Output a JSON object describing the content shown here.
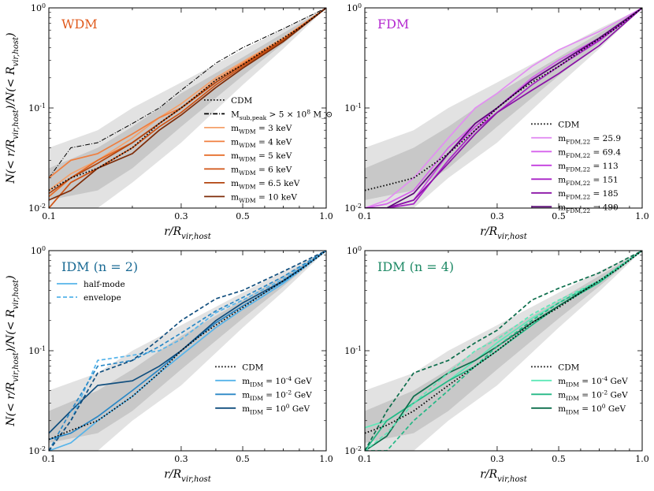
{
  "figure": {
    "xlabel": "r/R_vir,host",
    "ylabel": "N(< r/R_vir,host)/N(< R_vir,host)",
    "x_ticks": [
      "0.1",
      "0.3",
      "0.5",
      "1.0"
    ],
    "y_ticks": [
      "10^-2",
      "10^-1",
      "10^0"
    ]
  },
  "chart_data": [
    {
      "type": "line",
      "id": "wdm",
      "title": "WDM",
      "title_color": "#e05a1c",
      "xscale": "log",
      "yscale": "log",
      "xlim": [
        0.1,
        1.0
      ],
      "ylim": [
        0.01,
        1.0
      ],
      "legend_position": "center-right",
      "cdm_label": "CDM",
      "extra_label": "M_sub,peak > 5 × 10^8 M_⊙",
      "extra": {
        "x": [
          0.1,
          0.12,
          0.15,
          0.2,
          0.25,
          0.3,
          0.4,
          0.5,
          0.7,
          1.0
        ],
        "y": [
          0.02,
          0.04,
          0.045,
          0.07,
          0.1,
          0.15,
          0.28,
          0.4,
          0.62,
          1.0
        ]
      },
      "cdm": {
        "x": [
          0.1,
          0.12,
          0.15,
          0.2,
          0.25,
          0.3,
          0.35,
          0.4,
          0.5,
          0.6,
          0.7,
          0.8,
          1.0
        ],
        "y": [
          0.015,
          0.02,
          0.025,
          0.04,
          0.07,
          0.1,
          0.14,
          0.19,
          0.27,
          0.38,
          0.5,
          0.63,
          1.0
        ]
      },
      "bands": {
        "x": [
          0.1,
          0.15,
          0.2,
          0.3,
          0.5,
          0.7,
          1.0
        ],
        "outer_lo": [
          0.01,
          0.01,
          0.018,
          0.045,
          0.17,
          0.39,
          1.0
        ],
        "outer_hi": [
          0.04,
          0.06,
          0.1,
          0.18,
          0.38,
          0.62,
          1.0
        ],
        "inner_lo": [
          0.012,
          0.015,
          0.025,
          0.065,
          0.21,
          0.44,
          1.0
        ],
        "inner_hi": [
          0.025,
          0.04,
          0.065,
          0.14,
          0.32,
          0.56,
          1.0
        ]
      },
      "series": [
        {
          "name": "m_WDM = 3 keV",
          "color": "#f5a06a",
          "x": [
            0.1,
            0.12,
            0.15,
            0.2,
            0.25,
            0.3,
            0.4,
            0.5,
            0.7,
            1.0
          ],
          "y": [
            0.015,
            0.022,
            0.03,
            0.05,
            0.08,
            0.11,
            0.2,
            0.29,
            0.5,
            1.0
          ]
        },
        {
          "name": "m_WDM = 4 keV",
          "color": "#f07f3f",
          "x": [
            0.1,
            0.12,
            0.15,
            0.2,
            0.25,
            0.3,
            0.4,
            0.5,
            0.7,
            1.0
          ],
          "y": [
            0.02,
            0.03,
            0.035,
            0.055,
            0.08,
            0.1,
            0.19,
            0.28,
            0.49,
            1.0
          ]
        },
        {
          "name": "m_WDM = 5 keV",
          "color": "#e66a24",
          "x": [
            0.1,
            0.12,
            0.15,
            0.2,
            0.25,
            0.3,
            0.4,
            0.5,
            0.7,
            1.0
          ],
          "y": [
            0.013,
            0.02,
            0.03,
            0.045,
            0.07,
            0.1,
            0.18,
            0.27,
            0.48,
            1.0
          ]
        },
        {
          "name": "m_WDM = 6 keV",
          "color": "#d05314",
          "x": [
            0.1,
            0.12,
            0.15,
            0.2,
            0.25,
            0.3,
            0.4,
            0.5,
            0.7,
            1.0
          ],
          "y": [
            0.01,
            0.018,
            0.025,
            0.04,
            0.065,
            0.09,
            0.17,
            0.26,
            0.47,
            1.0
          ]
        },
        {
          "name": "m_WDM = 6.5 keV",
          "color": "#b2440e",
          "x": [
            0.1,
            0.12,
            0.15,
            0.2,
            0.25,
            0.3,
            0.4,
            0.5,
            0.7,
            1.0
          ],
          "y": [
            0.014,
            0.02,
            0.028,
            0.045,
            0.07,
            0.1,
            0.18,
            0.27,
            0.48,
            1.0
          ]
        },
        {
          "name": "m_WDM = 10 keV",
          "color": "#7e2c08",
          "x": [
            0.1,
            0.12,
            0.15,
            0.2,
            0.25,
            0.3,
            0.4,
            0.5,
            0.7,
            1.0
          ],
          "y": [
            0.012,
            0.015,
            0.025,
            0.035,
            0.06,
            0.085,
            0.16,
            0.25,
            0.46,
            1.0
          ]
        }
      ]
    },
    {
      "type": "line",
      "id": "fdm",
      "title": "FDM",
      "title_color": "#b52bd0",
      "xscale": "log",
      "yscale": "log",
      "xlim": [
        0.1,
        1.0
      ],
      "ylim": [
        0.01,
        1.0
      ],
      "legend_position": "lower-right",
      "cdm_label": "CDM",
      "cdm": {
        "x": [
          0.1,
          0.12,
          0.15,
          0.2,
          0.25,
          0.3,
          0.35,
          0.4,
          0.5,
          0.6,
          0.7,
          0.8,
          1.0
        ],
        "y": [
          0.015,
          0.017,
          0.02,
          0.035,
          0.06,
          0.1,
          0.14,
          0.18,
          0.26,
          0.37,
          0.49,
          0.62,
          1.0
        ]
      },
      "bands": {
        "x": [
          0.1,
          0.15,
          0.2,
          0.3,
          0.5,
          0.7,
          1.0
        ],
        "outer_lo": [
          0.01,
          0.01,
          0.02,
          0.045,
          0.17,
          0.39,
          1.0
        ],
        "outer_hi": [
          0.04,
          0.06,
          0.1,
          0.18,
          0.38,
          0.62,
          1.0
        ],
        "inner_lo": [
          0.012,
          0.015,
          0.025,
          0.065,
          0.21,
          0.44,
          1.0
        ],
        "inner_hi": [
          0.025,
          0.04,
          0.065,
          0.14,
          0.32,
          0.56,
          1.0
        ]
      },
      "series": [
        {
          "name": "m_FDM,22 = 25.9",
          "color": "#e28ef2",
          "x": [
            0.1,
            0.12,
            0.15,
            0.2,
            0.25,
            0.3,
            0.4,
            0.5,
            0.7,
            1.0
          ],
          "y": [
            0.01,
            0.012,
            0.02,
            0.05,
            0.1,
            0.14,
            0.26,
            0.38,
            0.58,
            1.0
          ]
        },
        {
          "name": "m_FDM,22 = 69.4",
          "color": "#d662ec",
          "x": [
            0.1,
            0.12,
            0.15,
            0.2,
            0.25,
            0.3,
            0.4,
            0.5,
            0.7,
            1.0
          ],
          "y": [
            0.01,
            0.011,
            0.015,
            0.04,
            0.07,
            0.1,
            0.2,
            0.3,
            0.5,
            1.0
          ]
        },
        {
          "name": "m_FDM,22 = 113",
          "color": "#c43fdf",
          "x": [
            0.1,
            0.12,
            0.15,
            0.2,
            0.25,
            0.3,
            0.4,
            0.5,
            0.7,
            1.0
          ],
          "y": [
            0.01,
            0.01,
            0.012,
            0.035,
            0.065,
            0.1,
            0.19,
            0.28,
            0.48,
            1.0
          ]
        },
        {
          "name": "m_FDM,22 = 151",
          "color": "#a822c6",
          "x": [
            0.1,
            0.12,
            0.15,
            0.2,
            0.25,
            0.3,
            0.4,
            0.5,
            0.7,
            1.0
          ],
          "y": [
            0.01,
            0.01,
            0.011,
            0.03,
            0.06,
            0.09,
            0.17,
            0.26,
            0.47,
            1.0
          ]
        },
        {
          "name": "m_FDM,22 = 185",
          "color": "#8a12a6",
          "x": [
            0.1,
            0.12,
            0.15,
            0.2,
            0.25,
            0.3,
            0.4,
            0.5,
            0.7,
            1.0
          ],
          "y": [
            0.01,
            0.01,
            0.012,
            0.028,
            0.055,
            0.09,
            0.15,
            0.22,
            0.42,
            1.0
          ]
        },
        {
          "name": "m_FDM,22 = 490",
          "color": "#5c0a78",
          "x": [
            0.1,
            0.12,
            0.15,
            0.2,
            0.25,
            0.3,
            0.4,
            0.5,
            0.7,
            1.0
          ],
          "y": [
            0.01,
            0.01,
            0.014,
            0.035,
            0.07,
            0.1,
            0.19,
            0.28,
            0.5,
            1.0
          ]
        }
      ]
    },
    {
      "type": "line",
      "id": "idm2",
      "title": "IDM (n = 2)",
      "title_color": "#1a6a94",
      "xscale": "log",
      "yscale": "log",
      "xlim": [
        0.1,
        1.0
      ],
      "ylim": [
        0.01,
        1.0
      ],
      "legend_position": "lower-right",
      "style_legend": [
        {
          "label": "half-mode",
          "dash": false
        },
        {
          "label": "envelope",
          "dash": true
        }
      ],
      "cdm_label": "CDM",
      "cdm": {
        "x": [
          0.1,
          0.12,
          0.15,
          0.2,
          0.25,
          0.3,
          0.35,
          0.4,
          0.5,
          0.6,
          0.7,
          0.8,
          1.0
        ],
        "y": [
          0.013,
          0.016,
          0.02,
          0.035,
          0.06,
          0.1,
          0.14,
          0.18,
          0.27,
          0.38,
          0.5,
          0.63,
          1.0
        ]
      },
      "bands": {
        "x": [
          0.1,
          0.15,
          0.2,
          0.3,
          0.5,
          0.7,
          1.0
        ],
        "outer_lo": [
          0.01,
          0.01,
          0.02,
          0.045,
          0.17,
          0.39,
          1.0
        ],
        "outer_hi": [
          0.04,
          0.06,
          0.1,
          0.18,
          0.38,
          0.62,
          1.0
        ],
        "inner_lo": [
          0.012,
          0.015,
          0.025,
          0.065,
          0.21,
          0.44,
          1.0
        ],
        "inner_hi": [
          0.025,
          0.04,
          0.065,
          0.14,
          0.32,
          0.56,
          1.0
        ]
      },
      "series": [
        {
          "name": "m_IDM = 10^-4 GeV",
          "color": "#56b4ea",
          "legend": true,
          "dash": false,
          "x": [
            0.1,
            0.12,
            0.15,
            0.2,
            0.25,
            0.3,
            0.4,
            0.5,
            0.7,
            1.0
          ],
          "y": [
            0.01,
            0.012,
            0.02,
            0.035,
            0.06,
            0.09,
            0.17,
            0.26,
            0.47,
            1.0
          ]
        },
        {
          "name": "m_IDM = 10^-2 GeV",
          "color": "#2a88c6",
          "legend": true,
          "dash": false,
          "x": [
            0.1,
            0.12,
            0.15,
            0.2,
            0.25,
            0.3,
            0.4,
            0.5,
            0.7,
            1.0
          ],
          "y": [
            0.013,
            0.015,
            0.022,
            0.04,
            0.065,
            0.1,
            0.19,
            0.28,
            0.49,
            1.0
          ]
        },
        {
          "name": "m_IDM = 10^0 GeV",
          "color": "#104e7e",
          "legend": true,
          "dash": false,
          "x": [
            0.1,
            0.12,
            0.15,
            0.2,
            0.25,
            0.3,
            0.4,
            0.5,
            0.7,
            1.0
          ],
          "y": [
            0.015,
            0.025,
            0.045,
            0.05,
            0.07,
            0.1,
            0.2,
            0.3,
            0.5,
            1.0
          ]
        },
        {
          "name": "envelope 10^-4",
          "color": "#56b4ea",
          "legend": false,
          "dash": true,
          "x": [
            0.1,
            0.12,
            0.15,
            0.2,
            0.25,
            0.3,
            0.4,
            0.5,
            0.7,
            1.0
          ],
          "y": [
            0.01,
            0.02,
            0.08,
            0.09,
            0.1,
            0.13,
            0.24,
            0.32,
            0.52,
            1.0
          ]
        },
        {
          "name": "envelope 10^-2",
          "color": "#2a88c6",
          "legend": false,
          "dash": true,
          "x": [
            0.1,
            0.12,
            0.15,
            0.2,
            0.25,
            0.3,
            0.4,
            0.5,
            0.7,
            1.0
          ],
          "y": [
            0.01,
            0.025,
            0.07,
            0.08,
            0.11,
            0.15,
            0.25,
            0.34,
            0.55,
            1.0
          ]
        },
        {
          "name": "envelope 10^0",
          "color": "#104e7e",
          "legend": false,
          "dash": true,
          "x": [
            0.1,
            0.12,
            0.15,
            0.2,
            0.25,
            0.3,
            0.4,
            0.5,
            0.7,
            1.0
          ],
          "y": [
            0.01,
            0.02,
            0.06,
            0.08,
            0.13,
            0.2,
            0.33,
            0.4,
            0.62,
            1.0
          ]
        }
      ]
    },
    {
      "type": "line",
      "id": "idm4",
      "title": "IDM (n = 4)",
      "title_color": "#1f8a66",
      "xscale": "log",
      "yscale": "log",
      "xlim": [
        0.1,
        1.0
      ],
      "ylim": [
        0.01,
        1.0
      ],
      "legend_position": "lower-right",
      "cdm_label": "CDM",
      "cdm": {
        "x": [
          0.1,
          0.12,
          0.15,
          0.2,
          0.25,
          0.3,
          0.35,
          0.4,
          0.5,
          0.6,
          0.7,
          0.8,
          1.0
        ],
        "y": [
          0.015,
          0.018,
          0.025,
          0.045,
          0.07,
          0.1,
          0.14,
          0.19,
          0.27,
          0.38,
          0.5,
          0.63,
          1.0
        ]
      },
      "bands": {
        "x": [
          0.1,
          0.15,
          0.2,
          0.3,
          0.5,
          0.7,
          1.0
        ],
        "outer_lo": [
          0.01,
          0.01,
          0.02,
          0.045,
          0.17,
          0.39,
          1.0
        ],
        "outer_hi": [
          0.04,
          0.06,
          0.1,
          0.18,
          0.38,
          0.62,
          1.0
        ],
        "inner_lo": [
          0.012,
          0.015,
          0.025,
          0.065,
          0.21,
          0.44,
          1.0
        ],
        "inner_hi": [
          0.025,
          0.04,
          0.065,
          0.14,
          0.32,
          0.56,
          1.0
        ]
      },
      "series": [
        {
          "name": "m_IDM = 10^-4 GeV",
          "color": "#5ee8b8",
          "legend": true,
          "dash": false,
          "x": [
            0.1,
            0.12,
            0.15,
            0.2,
            0.25,
            0.3,
            0.4,
            0.5,
            0.7,
            1.0
          ],
          "y": [
            0.017,
            0.02,
            0.03,
            0.05,
            0.08,
            0.12,
            0.21,
            0.3,
            0.5,
            1.0
          ]
        },
        {
          "name": "m_IDM = 10^-2 GeV",
          "color": "#23b885",
          "legend": true,
          "dash": false,
          "x": [
            0.1,
            0.12,
            0.15,
            0.2,
            0.25,
            0.3,
            0.4,
            0.5,
            0.7,
            1.0
          ],
          "y": [
            0.01,
            0.02,
            0.03,
            0.05,
            0.07,
            0.1,
            0.18,
            0.28,
            0.48,
            1.0
          ]
        },
        {
          "name": "m_IDM = 10^0 GeV",
          "color": "#0d6e4c",
          "legend": true,
          "dash": false,
          "x": [
            0.1,
            0.12,
            0.15,
            0.2,
            0.25,
            0.3,
            0.4,
            0.5,
            0.7,
            1.0
          ],
          "y": [
            0.01,
            0.014,
            0.035,
            0.06,
            0.08,
            0.11,
            0.19,
            0.28,
            0.5,
            1.0
          ]
        },
        {
          "name": "envelope 10^-4",
          "color": "#5ee8b8",
          "legend": false,
          "dash": true,
          "x": [
            0.1,
            0.12,
            0.15,
            0.2,
            0.25,
            0.3,
            0.4,
            0.5,
            0.7,
            1.0
          ],
          "y": [
            0.01,
            0.015,
            0.03,
            0.06,
            0.1,
            0.13,
            0.23,
            0.32,
            0.5,
            1.0
          ]
        },
        {
          "name": "envelope 10^-2",
          "color": "#23b885",
          "legend": false,
          "dash": true,
          "x": [
            0.1,
            0.12,
            0.15,
            0.2,
            0.25,
            0.3,
            0.4,
            0.5,
            0.7,
            1.0
          ],
          "y": [
            0.01,
            0.01,
            0.02,
            0.04,
            0.07,
            0.11,
            0.2,
            0.3,
            0.5,
            1.0
          ]
        },
        {
          "name": "envelope 10^0",
          "color": "#0d6e4c",
          "legend": false,
          "dash": true,
          "x": [
            0.1,
            0.12,
            0.15,
            0.2,
            0.25,
            0.3,
            0.4,
            0.5,
            0.7,
            1.0
          ],
          "y": [
            0.01,
            0.025,
            0.06,
            0.08,
            0.12,
            0.16,
            0.32,
            0.42,
            0.6,
            1.0
          ]
        }
      ]
    }
  ]
}
